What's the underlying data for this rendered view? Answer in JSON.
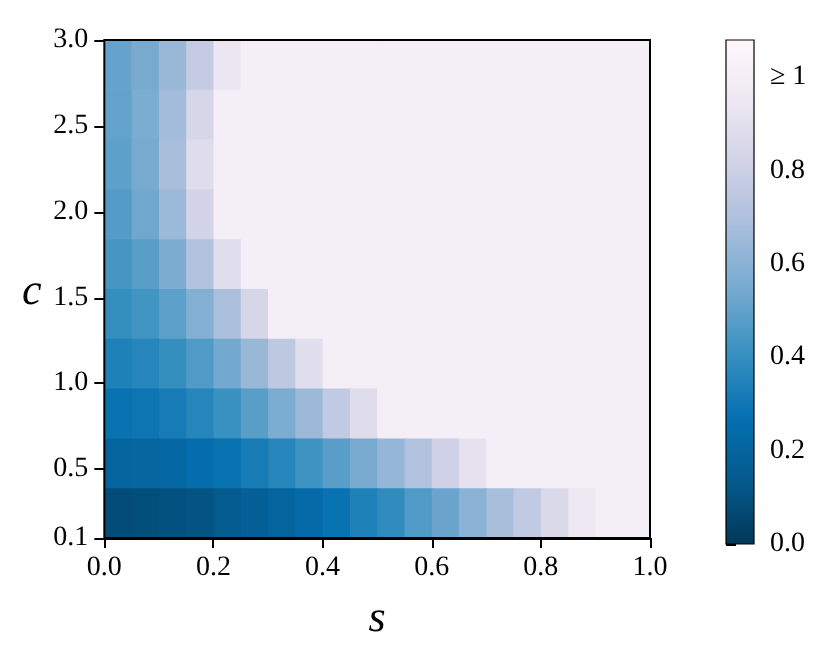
{
  "chart_data": {
    "type": "heatmap",
    "xlabel": "s",
    "ylabel": "c",
    "x": [
      0.025,
      0.075,
      0.125,
      0.175,
      0.225,
      0.275,
      0.325,
      0.375,
      0.425,
      0.475,
      0.525,
      0.575,
      0.625,
      0.675,
      0.725,
      0.775,
      0.825,
      0.875,
      0.925,
      0.975
    ],
    "y": [
      2.855,
      2.565,
      2.275,
      1.985,
      1.695,
      1.405,
      1.115,
      0.825,
      0.535,
      0.245
    ],
    "xlim": [
      0,
      1
    ],
    "ylim": [
      0.1,
      3.0
    ],
    "xticks": [
      {
        "value": 0,
        "label": "0.0"
      },
      {
        "value": 0.2,
        "label": "0.2"
      },
      {
        "value": 0.4,
        "label": "0.4"
      },
      {
        "value": 0.6,
        "label": "0.6"
      },
      {
        "value": 0.8,
        "label": "0.8"
      },
      {
        "value": 1,
        "label": "1.0"
      }
    ],
    "yticks": [
      0.1,
      0.5,
      {
        "value": 1,
        "label": "1.0"
      },
      1.5,
      {
        "value": 2,
        "label": "2.0"
      },
      2.5,
      {
        "value": 3,
        "label": "3.0"
      }
    ],
    "cells": [
      [
        0.51,
        0.55,
        0.64,
        0.77,
        0.94,
        1,
        1,
        1,
        1,
        1,
        1,
        1,
        1,
        1,
        1,
        1,
        1,
        1,
        1,
        1
      ],
      [
        0.5,
        0.56,
        0.67,
        0.84,
        1,
        1,
        1,
        1,
        1,
        1,
        1,
        1,
        1,
        1,
        1,
        1,
        1,
        1,
        1,
        1
      ],
      [
        0.49,
        0.55,
        0.68,
        0.88,
        1,
        1,
        1,
        1,
        1,
        1,
        1,
        1,
        1,
        1,
        1,
        1,
        1,
        1,
        1,
        1
      ],
      [
        0.47,
        0.53,
        0.65,
        0.83,
        1,
        1,
        1,
        1,
        1,
        1,
        1,
        1,
        1,
        1,
        1,
        1,
        1,
        1,
        1,
        1
      ],
      [
        0.44,
        0.48,
        0.57,
        0.71,
        0.89,
        1,
        1,
        1,
        1,
        1,
        1,
        1,
        1,
        1,
        1,
        1,
        1,
        1,
        1,
        1
      ],
      [
        0.4,
        0.43,
        0.49,
        0.58,
        0.69,
        0.84,
        1,
        1,
        1,
        1,
        1,
        1,
        1,
        1,
        1,
        1,
        1,
        1,
        1,
        1
      ],
      [
        0.34,
        0.36,
        0.4,
        0.46,
        0.54,
        0.64,
        0.75,
        0.89,
        1,
        1,
        1,
        1,
        1,
        1,
        1,
        1,
        1,
        1,
        1,
        1
      ],
      [
        0.28,
        0.29,
        0.32,
        0.36,
        0.41,
        0.48,
        0.56,
        0.65,
        0.76,
        0.88,
        1,
        1,
        1,
        1,
        1,
        1,
        1,
        1,
        1,
        1
      ],
      [
        0.2,
        0.21,
        0.22,
        0.25,
        0.28,
        0.32,
        0.36,
        0.42,
        0.48,
        0.55,
        0.63,
        0.71,
        0.81,
        0.91,
        1,
        1,
        1,
        1,
        1,
        1
      ],
      [
        0.08,
        0.09,
        0.1,
        0.11,
        0.14,
        0.17,
        0.2,
        0.24,
        0.28,
        0.34,
        0.39,
        0.46,
        0.52,
        0.6,
        0.68,
        0.76,
        0.86,
        0.95,
        1,
        1
      ]
    ],
    "clim": [
      0,
      1.08
    ],
    "cticks": [
      {
        "value": 0,
        "label": "0.0"
      },
      {
        "value": 0.2,
        "label": "0.2"
      },
      {
        "value": 0.4,
        "label": "0.4"
      },
      {
        "value": 0.6,
        "label": "0.6"
      },
      {
        "value": 0.8,
        "label": "0.8"
      },
      {
        "value": 1,
        "label": "≥ 1"
      }
    ],
    "colors": [
      "#023858",
      "#045a8d",
      "#0570b0",
      "#3690c0",
      "#74a9cf",
      "#a6bddb",
      "#d0d1e6",
      "#ece7f2",
      "#fff7fb"
    ]
  }
}
